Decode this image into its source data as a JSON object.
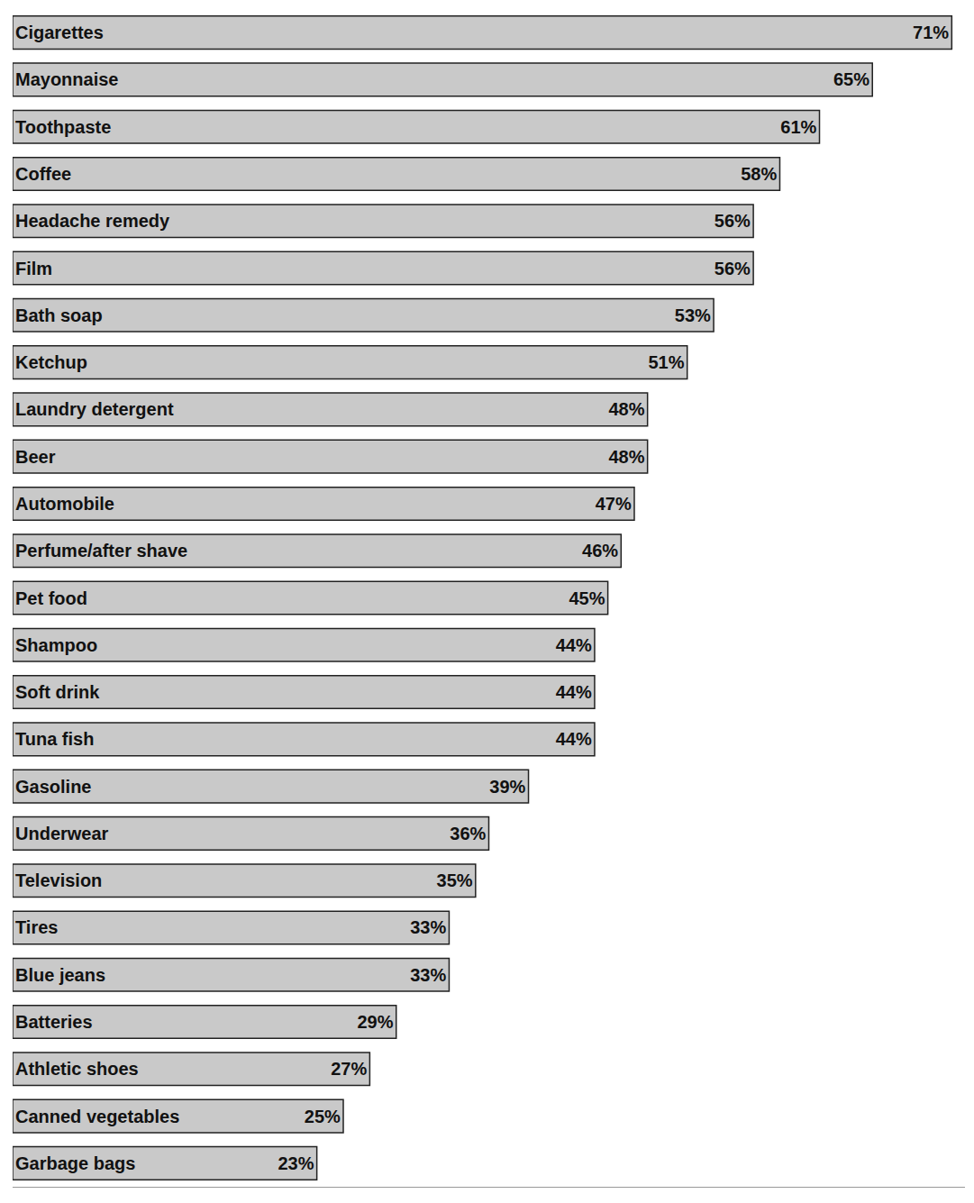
{
  "chart_data": {
    "type": "bar",
    "orientation": "horizontal",
    "categories": [
      "Cigarettes",
      "Mayonnaise",
      "Toothpaste",
      "Coffee",
      "Headache remedy",
      "Film",
      "Bath soap",
      "Ketchup",
      "Laundry detergent",
      "Beer",
      "Automobile",
      "Perfume/after shave",
      "Pet food",
      "Shampoo",
      "Soft drink",
      "Tuna fish",
      "Gasoline",
      "Underwear",
      "Television",
      "Tires",
      "Blue jeans",
      "Batteries",
      "Athletic shoes",
      "Canned vegetables",
      "Garbage bags"
    ],
    "values": [
      71,
      65,
      61,
      58,
      56,
      56,
      53,
      51,
      48,
      48,
      47,
      46,
      45,
      44,
      44,
      44,
      39,
      36,
      35,
      33,
      33,
      29,
      27,
      25,
      23
    ],
    "value_labels": [
      "71%",
      "65%",
      "61%",
      "58%",
      "56%",
      "56%",
      "53%",
      "51%",
      "48%",
      "48%",
      "47%",
      "46%",
      "45%",
      "44%",
      "44%",
      "44%",
      "39%",
      "36%",
      "35%",
      "33%",
      "33%",
      "29%",
      "27%",
      "25%",
      "23%"
    ],
    "color": "#c9c9c9",
    "xlim": [
      0,
      72
    ],
    "xticks": [],
    "grid": false,
    "data_labels": true,
    "tick_labels": "y"
  }
}
